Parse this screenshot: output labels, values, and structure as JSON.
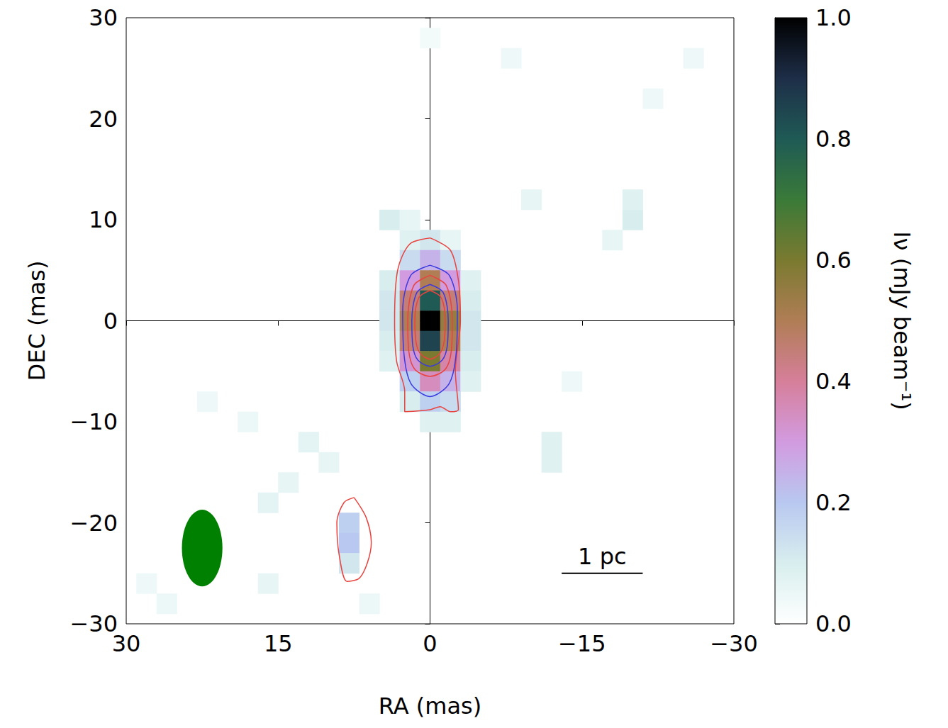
{
  "chart_data": {
    "type": "heatmap",
    "xlabel": "RA (mas)",
    "ylabel": "DEC (mas)",
    "xlim": [
      30,
      -30
    ],
    "xticks": [
      30,
      15,
      0,
      {
        "value": -15,
        "label": "−15"
      },
      {
        "value": -30,
        "label": "−30"
      }
    ],
    "ylim": [
      -30,
      30
    ],
    "yticks": [
      {
        "value": -30,
        "label": "−30"
      },
      {
        "value": -20,
        "label": "−20"
      },
      {
        "value": -10,
        "label": "−10"
      },
      0,
      10,
      20,
      30
    ],
    "cell_size": 2,
    "cells": [
      [
        2,
        8,
        0.08
      ],
      [
        0,
        8,
        0.12
      ],
      [
        -2,
        8,
        0.06
      ],
      [
        2,
        6,
        0.15
      ],
      [
        0,
        6,
        0.25
      ],
      [
        -2,
        6,
        0.15
      ],
      [
        4,
        4,
        0.1
      ],
      [
        2,
        4,
        0.3
      ],
      [
        0,
        4,
        0.5
      ],
      [
        -2,
        4,
        0.3
      ],
      [
        -4,
        4,
        0.08
      ],
      [
        4,
        2,
        0.12
      ],
      [
        2,
        2,
        0.45
      ],
      [
        0,
        2,
        0.8
      ],
      [
        -2,
        2,
        0.45
      ],
      [
        -4,
        2,
        0.1
      ],
      [
        4,
        0,
        0.12
      ],
      [
        2,
        0,
        0.5
      ],
      [
        0,
        0,
        1.0
      ],
      [
        -2,
        0,
        0.55
      ],
      [
        -4,
        0,
        0.12
      ],
      [
        4,
        -2,
        0.1
      ],
      [
        2,
        -2,
        0.45
      ],
      [
        0,
        -2,
        0.85
      ],
      [
        -2,
        -2,
        0.5
      ],
      [
        -4,
        -2,
        0.12
      ],
      [
        4,
        -4,
        0.08
      ],
      [
        2,
        -4,
        0.32
      ],
      [
        0,
        -4,
        0.6
      ],
      [
        -2,
        -4,
        0.38
      ],
      [
        -4,
        -4,
        0.1
      ],
      [
        2,
        -6,
        0.18
      ],
      [
        0,
        -6,
        0.35
      ],
      [
        -2,
        -6,
        0.25
      ],
      [
        -4,
        -6,
        0.08
      ],
      [
        2,
        -8,
        0.1
      ],
      [
        0,
        -8,
        0.18
      ],
      [
        -2,
        -8,
        0.15
      ],
      [
        0,
        -10,
        0.08
      ],
      [
        -2,
        -10,
        0.08
      ],
      [
        4,
        10,
        0.1
      ],
      [
        2,
        10,
        0.06
      ],
      [
        -20,
        10,
        0.1
      ],
      [
        -20,
        12,
        0.08
      ],
      [
        -18,
        8,
        0.06
      ],
      [
        -10,
        12,
        0.06
      ],
      [
        -12,
        -12,
        0.08
      ],
      [
        -12,
        -14,
        0.08
      ],
      [
        -14,
        -6,
        0.04
      ],
      [
        8,
        -20,
        0.18
      ],
      [
        8,
        -22,
        0.2
      ],
      [
        8,
        -24,
        0.12
      ],
      [
        16,
        -18,
        0.07
      ],
      [
        14,
        -16,
        0.06
      ],
      [
        12,
        -12,
        0.07
      ],
      [
        10,
        -14,
        0.06
      ],
      [
        18,
        -10,
        0.05
      ],
      [
        22,
        -8,
        0.04
      ],
      [
        26,
        -28,
        0.05
      ],
      [
        28,
        -26,
        0.04
      ],
      [
        16,
        -26,
        0.06
      ],
      [
        6,
        -28,
        0.05
      ],
      [
        -22,
        22,
        0.04
      ],
      [
        -8,
        26,
        0.04
      ],
      [
        0,
        28,
        0.03
      ],
      [
        -26,
        26,
        0.04
      ]
    ],
    "colorbar": {
      "label": "Iν (mJy beam⁻¹)",
      "range": [
        0,
        1
      ],
      "ticks": [
        {
          "value": 0,
          "label": "0.0"
        },
        {
          "value": 0.2,
          "label": "0.2"
        },
        {
          "value": 0.4,
          "label": "0.4"
        },
        {
          "value": 0.6,
          "label": "0.6"
        },
        {
          "value": 0.8,
          "label": "0.8"
        },
        {
          "value": 1,
          "label": "1.0"
        }
      ]
    },
    "contours": [
      {
        "color": "#e8433f",
        "points": [
          [
            0,
            8.2
          ],
          [
            2,
            7.6
          ],
          [
            3.2,
            5
          ],
          [
            3.5,
            0
          ],
          [
            3.3,
            -4
          ],
          [
            2.5,
            -7
          ],
          [
            2.5,
            -9
          ],
          [
            0,
            -8.8
          ],
          [
            -1,
            -8.5
          ],
          [
            -2,
            -9
          ],
          [
            -2.8,
            -8.8
          ],
          [
            -2.5,
            -5
          ],
          [
            -3,
            0
          ],
          [
            -2.8,
            4
          ],
          [
            -2,
            7
          ],
          [
            0,
            8.2
          ]
        ]
      },
      {
        "color": "#3a3ae0",
        "points": [
          [
            0,
            5.5
          ],
          [
            1.9,
            4.5
          ],
          [
            2.7,
            1
          ],
          [
            2.6,
            -3
          ],
          [
            1.9,
            -6.2
          ],
          [
            0,
            -7.5
          ],
          [
            -1.9,
            -6.2
          ],
          [
            -2.6,
            -3
          ],
          [
            -2.7,
            1
          ],
          [
            -1.9,
            4.5
          ],
          [
            0,
            5.5
          ]
        ]
      },
      {
        "color": "#e8433f",
        "points": [
          [
            0,
            4.5
          ],
          [
            1.6,
            3.5
          ],
          [
            2.2,
            0
          ],
          [
            2.1,
            -3
          ],
          [
            1.5,
            -4.8
          ],
          [
            0,
            -5.5
          ],
          [
            -1.5,
            -4.8
          ],
          [
            -2.1,
            -3
          ],
          [
            -2.2,
            0
          ],
          [
            -1.6,
            3.5
          ],
          [
            0,
            4.5
          ]
        ]
      },
      {
        "color": "#3a3ae0",
        "points": [
          [
            0,
            3.6
          ],
          [
            1.3,
            2.8
          ],
          [
            1.8,
            0
          ],
          [
            1.7,
            -2.5
          ],
          [
            1.2,
            -3.9
          ],
          [
            0,
            -4.5
          ],
          [
            -1.2,
            -3.9
          ],
          [
            -1.7,
            -2.5
          ],
          [
            -1.8,
            0
          ],
          [
            -1.3,
            2.8
          ],
          [
            0,
            3.6
          ]
        ]
      },
      {
        "color": "#e8433f",
        "points": [
          [
            0,
            3
          ],
          [
            1.1,
            2.3
          ],
          [
            1.5,
            0
          ],
          [
            1.4,
            -2
          ],
          [
            1,
            -3.2
          ],
          [
            0,
            -3.8
          ],
          [
            -1,
            -3.2
          ],
          [
            -1.4,
            -2
          ],
          [
            -1.5,
            0
          ],
          [
            -1.1,
            2.3
          ],
          [
            0,
            3
          ]
        ]
      },
      {
        "color": "#e8433f",
        "points": [
          [
            7.5,
            -17.5
          ],
          [
            6.3,
            -19.5
          ],
          [
            5.8,
            -22
          ],
          [
            6.2,
            -24
          ],
          [
            7,
            -25.5
          ],
          [
            8.2,
            -25.8
          ],
          [
            9,
            -23
          ],
          [
            9.2,
            -20
          ],
          [
            8.5,
            -18
          ],
          [
            7.5,
            -17.5
          ]
        ]
      }
    ],
    "beam": {
      "x": 22.5,
      "y": -22.5,
      "width": 4,
      "height": 7.6,
      "color": "#008000"
    },
    "scale_bar": {
      "label": "1 pc",
      "x": [
        -13,
        -21
      ],
      "y": -25
    }
  }
}
